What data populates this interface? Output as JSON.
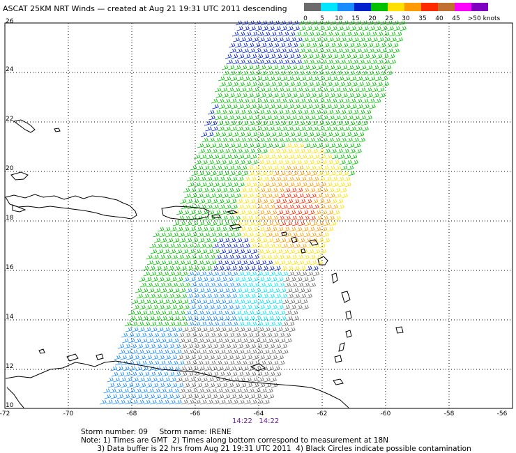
{
  "title": "ASCAT 25KM NRT Winds — created at Aug 21 19:31 UTC 2011 descending",
  "legend": {
    "labels": [
      "0",
      "5",
      "10",
      "15",
      "20",
      "25",
      "30",
      "35",
      "40",
      "45",
      ">50 knots"
    ],
    "colors": [
      "#6b6b6b",
      "#00e5ff",
      "#1a8cff",
      "#0022cc",
      "#00c000",
      "#ffe000",
      "#ff9a00",
      "#ff2a00",
      "#c07030",
      "#ff00ff",
      "#8000c0"
    ]
  },
  "axes": {
    "lat_labels": [
      "26",
      "24",
      "22",
      "20",
      "18",
      "16",
      "14",
      "12",
      "10"
    ],
    "lon_labels": [
      "-72",
      "-70",
      "-68",
      "-66",
      "-64",
      "-62",
      "-60",
      "-58",
      "-56"
    ]
  },
  "times": [
    "14:22",
    "14:22"
  ],
  "storm_line": "Storm number: 09     Storm name: IRENE",
  "notes": [
    "Note: 1) Times are GMT  2) Times along bottom correspond to measurement at 18N",
    "       3) Data buffer is 22 hrs from Aug 21 19:31 UTC 2011  4) Black Circles indicate possible contamination"
  ],
  "colors": {
    "coast": "#000000",
    "grid": "#000000"
  }
}
